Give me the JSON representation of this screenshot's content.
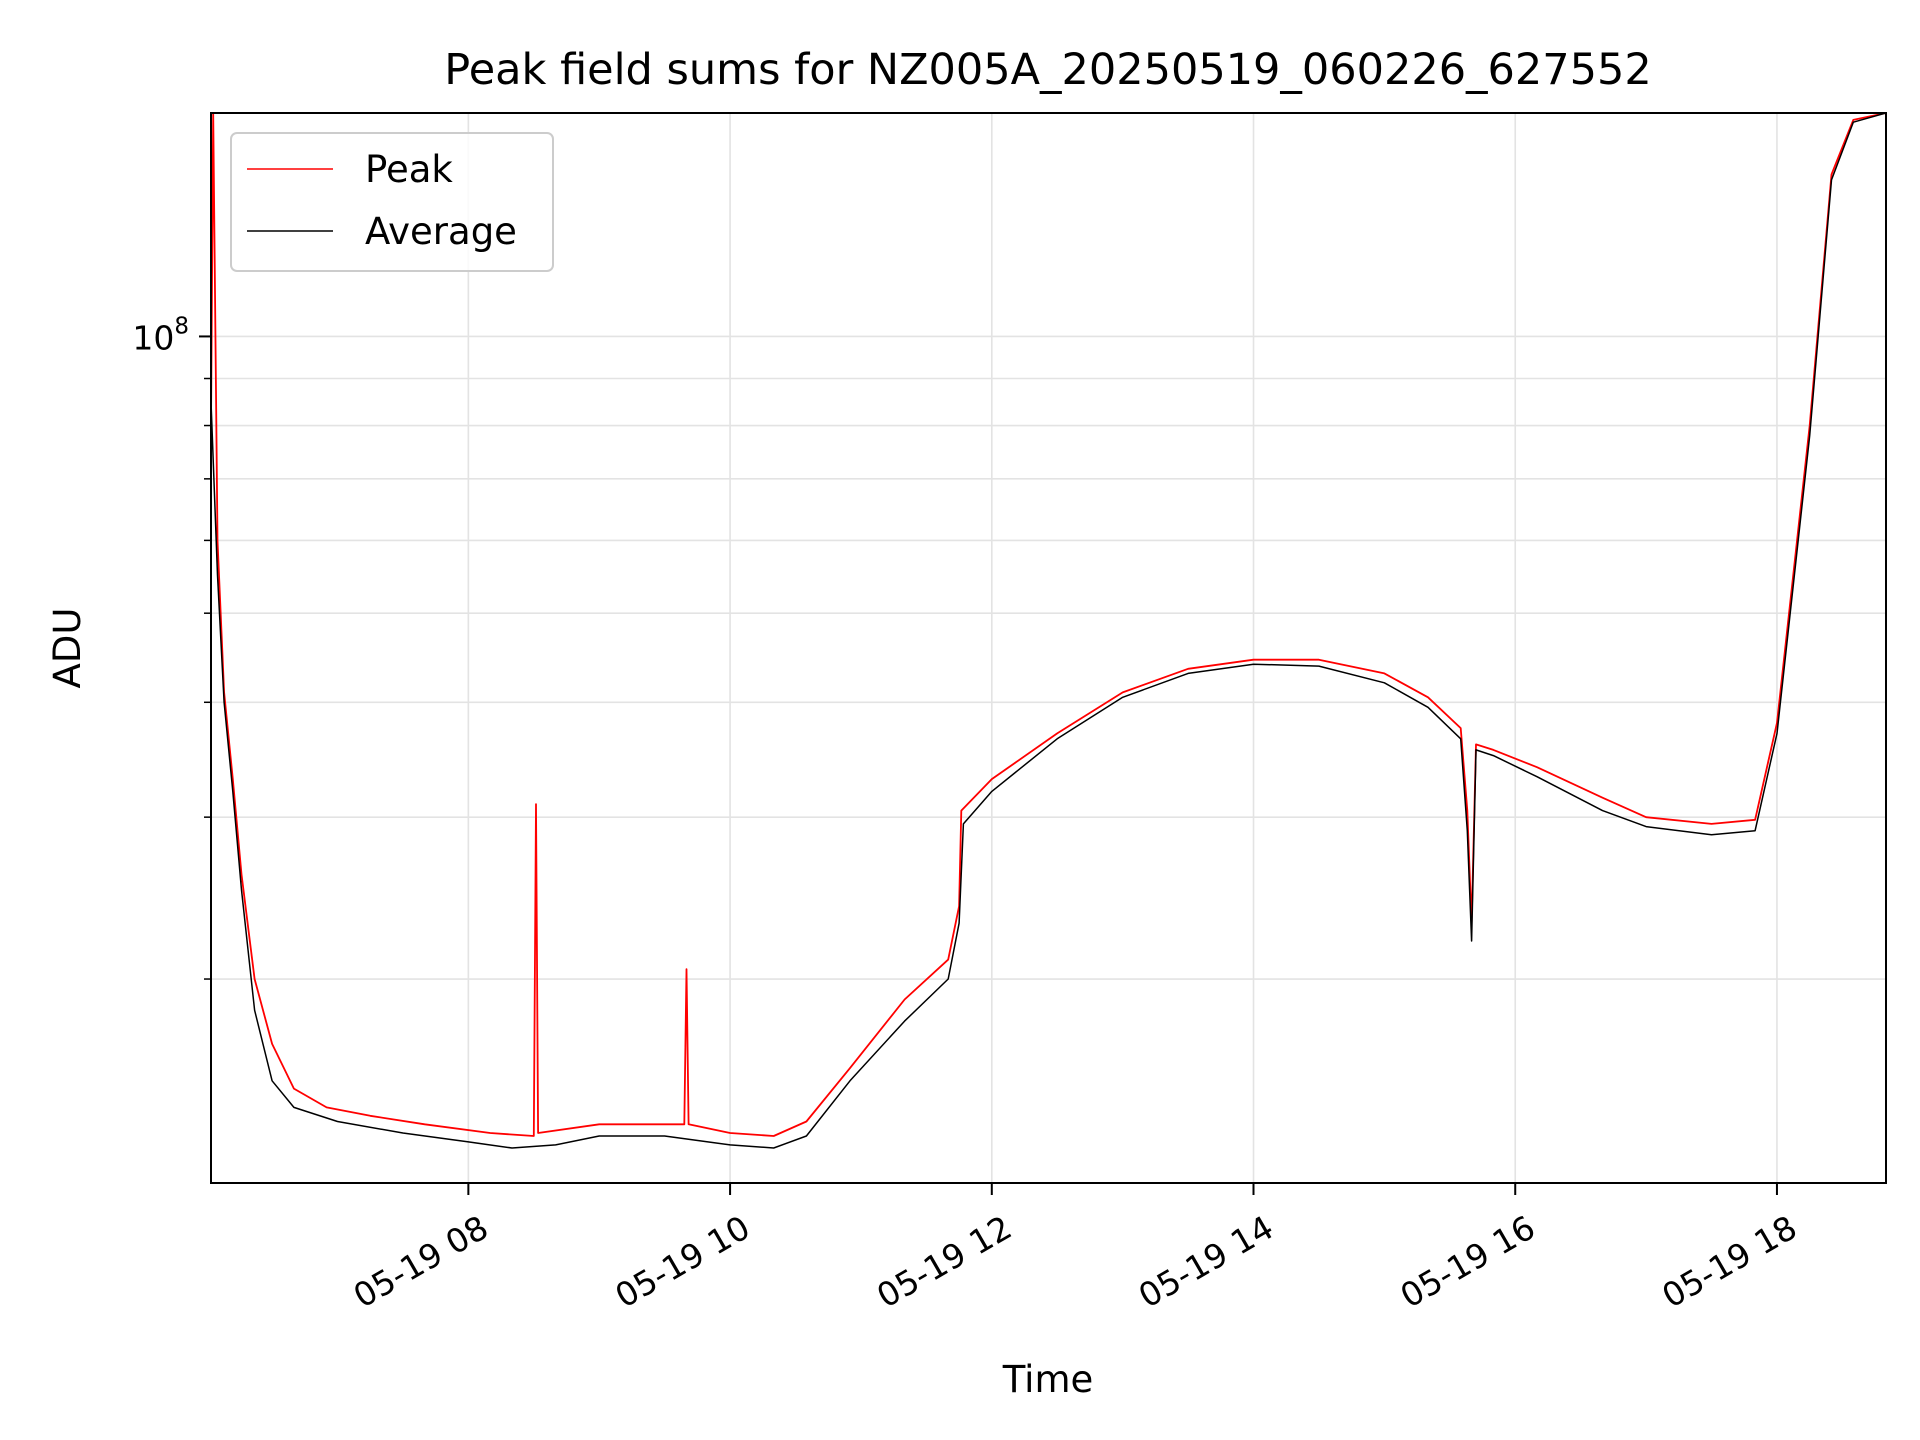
{
  "chart_data": {
    "type": "line",
    "title": "Peak field sums for NZ005A_20250519_060226_627552",
    "xlabel": "Time",
    "ylabel": "ADU",
    "y_scale": "log",
    "grid": true,
    "legend_position": "top-left",
    "x_range": [
      "2025-05-19 06:02",
      "2025-05-19 18:50"
    ],
    "ylim": [
      12000000,
      175000000
    ],
    "x_ticks": [
      {
        "t": "2025-05-19 08:00",
        "label": "05-19 08"
      },
      {
        "t": "2025-05-19 10:00",
        "label": "05-19 10"
      },
      {
        "t": "2025-05-19 12:00",
        "label": "05-19 12"
      },
      {
        "t": "2025-05-19 14:00",
        "label": "05-19 14"
      },
      {
        "t": "2025-05-19 16:00",
        "label": "05-19 16"
      },
      {
        "t": "2025-05-19 18:00",
        "label": "05-19 18"
      }
    ],
    "y_major_ticks": [
      {
        "value": 100000000,
        "label_base": "10",
        "label_exp": "8"
      }
    ],
    "y_minor_ticks": [
      20000000,
      30000000,
      40000000,
      50000000,
      60000000,
      70000000,
      80000000,
      90000000,
      200000000
    ],
    "series": [
      {
        "name": "Peak",
        "color": "#ff0000",
        "points": [
          [
            "06:02",
            80000000
          ],
          [
            "06:03",
            175000000
          ],
          [
            "06:05",
            60000000
          ],
          [
            "06:08",
            41000000
          ],
          [
            "06:12",
            33000000
          ],
          [
            "06:16",
            26000000
          ],
          [
            "06:22",
            20000000
          ],
          [
            "06:30",
            17000000
          ],
          [
            "06:40",
            15200000
          ],
          [
            "06:55",
            14500000
          ],
          [
            "07:15",
            14200000
          ],
          [
            "07:40",
            13900000
          ],
          [
            "08:10",
            13600000
          ],
          [
            "08:30",
            13500000
          ],
          [
            "08:31",
            31000000
          ],
          [
            "08:32",
            13600000
          ],
          [
            "09:00",
            13900000
          ],
          [
            "09:30",
            13900000
          ],
          [
            "09:39",
            13900000
          ],
          [
            "09:40",
            20500000
          ],
          [
            "09:41",
            13900000
          ],
          [
            "10:00",
            13600000
          ],
          [
            "10:20",
            13500000
          ],
          [
            "10:35",
            14000000
          ],
          [
            "10:55",
            16000000
          ],
          [
            "11:20",
            19000000
          ],
          [
            "11:40",
            21000000
          ],
          [
            "11:45",
            24000000
          ],
          [
            "11:46",
            30500000
          ],
          [
            "12:00",
            33000000
          ],
          [
            "12:30",
            37000000
          ],
          [
            "13:00",
            41000000
          ],
          [
            "13:30",
            43500000
          ],
          [
            "14:00",
            44500000
          ],
          [
            "14:30",
            44500000
          ],
          [
            "15:00",
            43000000
          ],
          [
            "15:20",
            40500000
          ],
          [
            "15:35",
            37500000
          ],
          [
            "15:38",
            30500000
          ],
          [
            "15:40",
            23000000
          ],
          [
            "15:42",
            36000000
          ],
          [
            "15:50",
            35500000
          ],
          [
            "16:10",
            34000000
          ],
          [
            "16:40",
            31500000
          ],
          [
            "17:00",
            30000000
          ],
          [
            "17:30",
            29500000
          ],
          [
            "17:50",
            29800000
          ],
          [
            "18:00",
            38000000
          ],
          [
            "18:15",
            80000000
          ],
          [
            "18:25",
            150000000
          ],
          [
            "18:35",
            172000000
          ],
          [
            "18:50",
            175000000
          ]
        ]
      },
      {
        "name": "Average",
        "color": "#000000",
        "points": [
          [
            "06:02",
            85000000
          ],
          [
            "06:05",
            55000000
          ],
          [
            "06:08",
            40000000
          ],
          [
            "06:12",
            32000000
          ],
          [
            "06:16",
            25000000
          ],
          [
            "06:22",
            18500000
          ],
          [
            "06:30",
            15500000
          ],
          [
            "06:40",
            14500000
          ],
          [
            "07:00",
            14000000
          ],
          [
            "07:30",
            13600000
          ],
          [
            "08:00",
            13300000
          ],
          [
            "08:20",
            13100000
          ],
          [
            "08:40",
            13200000
          ],
          [
            "09:00",
            13500000
          ],
          [
            "09:30",
            13500000
          ],
          [
            "10:00",
            13200000
          ],
          [
            "10:20",
            13100000
          ],
          [
            "10:35",
            13500000
          ],
          [
            "10:55",
            15500000
          ],
          [
            "11:20",
            18000000
          ],
          [
            "11:40",
            20000000
          ],
          [
            "11:45",
            23000000
          ],
          [
            "11:47",
            29500000
          ],
          [
            "12:00",
            32000000
          ],
          [
            "12:30",
            36500000
          ],
          [
            "13:00",
            40500000
          ],
          [
            "13:30",
            43000000
          ],
          [
            "14:00",
            44000000
          ],
          [
            "14:30",
            43800000
          ],
          [
            "15:00",
            42000000
          ],
          [
            "15:20",
            39500000
          ],
          [
            "15:35",
            36500000
          ],
          [
            "15:38",
            29000000
          ],
          [
            "15:40",
            22000000
          ],
          [
            "15:42",
            35500000
          ],
          [
            "15:50",
            35000000
          ],
          [
            "16:10",
            33200000
          ],
          [
            "16:40",
            30500000
          ],
          [
            "17:00",
            29300000
          ],
          [
            "17:30",
            28700000
          ],
          [
            "17:50",
            29000000
          ],
          [
            "18:00",
            37000000
          ],
          [
            "18:15",
            78000000
          ],
          [
            "18:25",
            148000000
          ],
          [
            "18:35",
            171000000
          ],
          [
            "18:50",
            175000000
          ]
        ]
      }
    ]
  }
}
